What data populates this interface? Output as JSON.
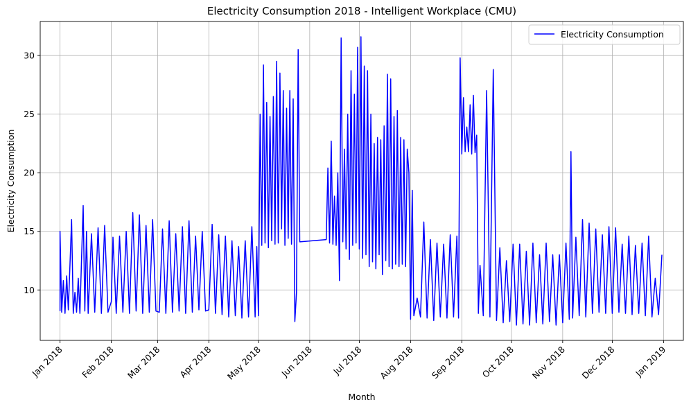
{
  "chart_data": {
    "type": "line",
    "title": "Electricity Consumption 2018 - Intelligent Workplace (CMU)",
    "xlabel": "Month",
    "ylabel": "Electricity Consumption",
    "grid": true,
    "legend_position": "top-right",
    "xlim": [
      "2017-12-20",
      "2019-01-13"
    ],
    "ylim": [
      5.7,
      32.9
    ],
    "x_ticks": [
      "2018-01-01",
      "2018-02-01",
      "2018-03-01",
      "2018-04-01",
      "2018-05-01",
      "2018-06-01",
      "2018-07-01",
      "2018-08-01",
      "2018-09-01",
      "2018-10-01",
      "2018-11-01",
      "2018-12-01",
      "2019-01-01"
    ],
    "x_tick_labels": [
      "Jan 2018",
      "Feb 2018",
      "Mar 2018",
      "Apr 2018",
      "May 2018",
      "Jun 2018",
      "Jul 2018",
      "Aug 2018",
      "Sep 2018",
      "Oct 2018",
      "Nov 2018",
      "Dec 2018",
      "Jan 2019"
    ],
    "y_ticks": [
      10,
      15,
      20,
      25,
      30
    ],
    "y_tick_labels": [
      "10",
      "15",
      "20",
      "25",
      "30"
    ],
    "series": [
      {
        "name": "Electricity Consumption",
        "color": "#0000ff",
        "x": [
          "2018-01-01",
          "2018-01-01",
          "2018-01-02",
          "2018-01-03",
          "2018-01-04",
          "2018-01-05",
          "2018-01-06",
          "2018-01-08",
          "2018-01-09",
          "2018-01-10",
          "2018-01-11",
          "2018-01-12",
          "2018-01-13",
          "2018-01-15",
          "2018-01-16",
          "2018-01-17",
          "2018-01-18",
          "2018-01-20",
          "2018-01-22",
          "2018-01-24",
          "2018-01-26",
          "2018-01-28",
          "2018-01-30",
          "2018-02-01",
          "2018-02-02",
          "2018-02-04",
          "2018-02-06",
          "2018-02-08",
          "2018-02-10",
          "2018-02-12",
          "2018-02-14",
          "2018-02-16",
          "2018-02-18",
          "2018-02-20",
          "2018-02-22",
          "2018-02-24",
          "2018-02-26",
          "2018-02-28",
          "2018-03-02",
          "2018-03-04",
          "2018-03-06",
          "2018-03-08",
          "2018-03-10",
          "2018-03-12",
          "2018-03-14",
          "2018-03-16",
          "2018-03-18",
          "2018-03-20",
          "2018-03-22",
          "2018-03-24",
          "2018-03-26",
          "2018-03-28",
          "2018-03-30",
          "2018-04-01",
          "2018-04-03",
          "2018-04-05",
          "2018-04-07",
          "2018-04-09",
          "2018-04-11",
          "2018-04-13",
          "2018-04-15",
          "2018-04-17",
          "2018-04-19",
          "2018-04-21",
          "2018-04-23",
          "2018-04-25",
          "2018-04-27",
          "2018-04-29",
          "2018-04-30",
          "2018-05-01",
          "2018-05-02",
          "2018-05-03",
          "2018-05-04",
          "2018-05-05",
          "2018-05-06",
          "2018-05-07",
          "2018-05-08",
          "2018-05-09",
          "2018-05-10",
          "2018-05-11",
          "2018-05-12",
          "2018-05-13",
          "2018-05-14",
          "2018-05-15",
          "2018-05-16",
          "2018-05-17",
          "2018-05-18",
          "2018-05-19",
          "2018-05-20",
          "2018-05-21",
          "2018-05-22",
          "2018-05-23",
          "2018-05-24",
          "2018-05-25",
          "2018-05-26",
          "2018-06-11",
          "2018-06-12",
          "2018-06-13",
          "2018-06-14",
          "2018-06-15",
          "2018-06-16",
          "2018-06-17",
          "2018-06-18",
          "2018-06-19",
          "2018-06-20",
          "2018-06-21",
          "2018-06-22",
          "2018-06-23",
          "2018-06-24",
          "2018-06-25",
          "2018-06-26",
          "2018-06-27",
          "2018-06-28",
          "2018-06-29",
          "2018-06-30",
          "2018-07-01",
          "2018-07-02",
          "2018-07-03",
          "2018-07-04",
          "2018-07-05",
          "2018-07-06",
          "2018-07-07",
          "2018-07-08",
          "2018-07-09",
          "2018-07-10",
          "2018-07-11",
          "2018-07-12",
          "2018-07-13",
          "2018-07-14",
          "2018-07-15",
          "2018-07-16",
          "2018-07-17",
          "2018-07-18",
          "2018-07-19",
          "2018-07-20",
          "2018-07-21",
          "2018-07-22",
          "2018-07-23",
          "2018-07-24",
          "2018-07-25",
          "2018-07-26",
          "2018-07-27",
          "2018-07-28",
          "2018-07-29",
          "2018-07-30",
          "2018-07-31",
          "2018-08-01",
          "2018-08-02",
          "2018-08-03",
          "2018-08-05",
          "2018-08-07",
          "2018-08-09",
          "2018-08-11",
          "2018-08-13",
          "2018-08-15",
          "2018-08-17",
          "2018-08-19",
          "2018-08-21",
          "2018-08-23",
          "2018-08-25",
          "2018-08-27",
          "2018-08-29",
          "2018-08-30",
          "2018-08-31",
          "2018-09-01",
          "2018-09-02",
          "2018-09-03",
          "2018-09-04",
          "2018-09-05",
          "2018-09-06",
          "2018-09-07",
          "2018-09-08",
          "2018-09-09",
          "2018-09-10",
          "2018-09-11",
          "2018-09-12",
          "2018-09-14",
          "2018-09-16",
          "2018-09-18",
          "2018-09-20",
          "2018-09-22",
          "2018-09-24",
          "2018-09-26",
          "2018-09-28",
          "2018-09-30",
          "2018-10-02",
          "2018-10-04",
          "2018-10-06",
          "2018-10-08",
          "2018-10-10",
          "2018-10-12",
          "2018-10-14",
          "2018-10-16",
          "2018-10-18",
          "2018-10-20",
          "2018-10-22",
          "2018-10-24",
          "2018-10-26",
          "2018-10-28",
          "2018-10-30",
          "2018-11-01",
          "2018-11-03",
          "2018-11-05",
          "2018-11-06",
          "2018-11-07",
          "2018-11-09",
          "2018-11-11",
          "2018-11-13",
          "2018-11-15",
          "2018-11-17",
          "2018-11-19",
          "2018-11-21",
          "2018-11-23",
          "2018-11-25",
          "2018-11-27",
          "2018-11-29",
          "2018-12-01",
          "2018-12-03",
          "2018-12-05",
          "2018-12-07",
          "2018-12-09",
          "2018-12-11",
          "2018-12-13",
          "2018-12-15",
          "2018-12-17",
          "2018-12-19",
          "2018-12-21",
          "2018-12-23",
          "2018-12-25",
          "2018-12-27",
          "2018-12-29",
          "2018-12-31"
        ],
        "y": [
          8.2,
          15.0,
          8.1,
          10.8,
          8.0,
          11.2,
          8.3,
          16.0,
          8.0,
          9.8,
          8.1,
          11.0,
          8.0,
          17.2,
          8.2,
          15.0,
          8.0,
          14.8,
          8.1,
          15.3,
          8.0,
          15.5,
          8.1,
          9.0,
          14.5,
          8.0,
          14.6,
          8.1,
          15.0,
          8.0,
          16.6,
          8.2,
          16.4,
          8.0,
          15.5,
          8.1,
          16.0,
          8.2,
          8.1,
          15.2,
          8.0,
          15.9,
          8.1,
          14.8,
          8.2,
          15.4,
          8.0,
          15.9,
          8.1,
          14.6,
          8.3,
          15.0,
          8.2,
          8.3,
          15.6,
          8.0,
          14.7,
          7.9,
          14.6,
          7.7,
          14.2,
          7.8,
          13.7,
          7.6,
          14.2,
          7.7,
          15.4,
          7.7,
          13.7,
          7.8,
          25.0,
          13.8,
          29.2,
          14.0,
          26.0,
          13.6,
          24.8,
          14.2,
          26.5,
          13.9,
          29.5,
          14.0,
          28.5,
          15.2,
          27.0,
          13.8,
          25.5,
          14.4,
          27.0,
          13.9,
          26.3,
          7.3,
          9.8,
          30.5,
          14.1,
          14.3,
          20.4,
          14.0,
          22.7,
          13.9,
          18.0,
          13.8,
          20.0,
          10.8,
          31.5,
          14.1,
          22.0,
          13.5,
          25.0,
          12.6,
          28.7,
          13.8,
          26.7,
          14.0,
          30.7,
          13.5,
          31.6,
          12.7,
          29.1,
          13.0,
          28.7,
          12.0,
          25.0,
          12.4,
          22.5,
          11.8,
          23.0,
          13.0,
          22.8,
          11.3,
          24.0,
          12.5,
          28.4,
          12.0,
          28.0,
          11.8,
          24.8,
          12.2,
          25.3,
          12.0,
          23.0,
          12.2,
          22.8,
          12.0,
          22.0,
          20.0,
          7.5,
          18.5,
          7.8,
          9.3,
          7.7,
          15.8,
          7.6,
          14.3,
          7.4,
          14.0,
          7.7,
          13.9,
          7.6,
          14.7,
          7.7,
          14.6,
          7.6,
          29.8,
          21.6,
          26.4,
          21.8,
          23.9,
          21.8,
          25.8,
          21.6,
          26.6,
          21.7,
          23.2,
          8.0,
          12.1,
          7.8,
          27.0,
          7.7,
          28.8,
          7.4,
          13.6,
          7.2,
          12.5,
          7.3,
          13.9,
          7.0,
          13.9,
          7.1,
          13.3,
          7.0,
          14.0,
          7.2,
          13.0,
          7.1,
          14.0,
          7.3,
          13.0,
          7.0,
          13.0,
          7.2,
          14.0,
          7.5,
          21.8,
          7.6,
          14.5,
          7.8,
          16.0,
          7.7,
          15.7,
          8.0,
          15.2,
          8.1,
          14.7,
          8.0,
          15.4,
          8.0,
          15.3,
          8.1,
          13.9,
          8.0,
          14.6,
          7.9,
          13.8,
          8.0,
          14.0,
          7.8,
          14.6,
          7.7,
          11.0,
          7.9,
          13.0
        ]
      }
    ]
  }
}
